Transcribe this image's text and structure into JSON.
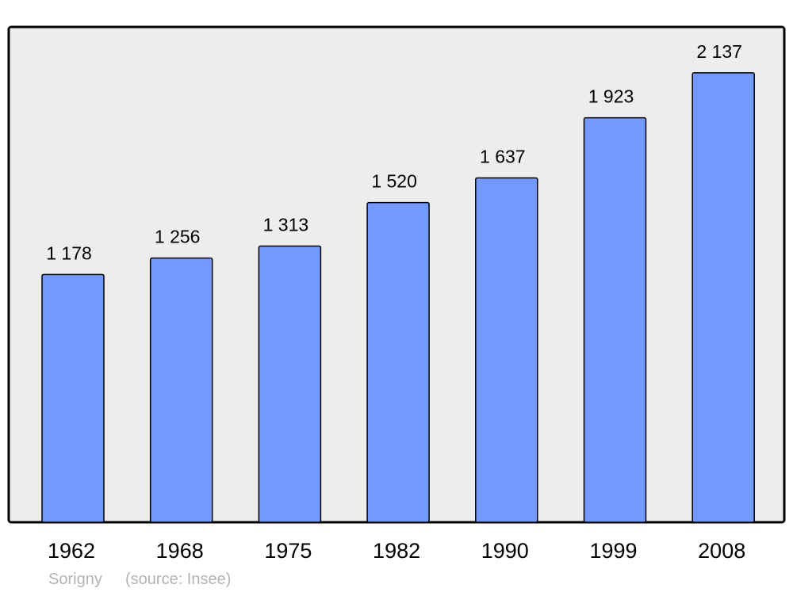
{
  "chart_data": {
    "type": "bar",
    "categories": [
      "1962",
      "1968",
      "1975",
      "1982",
      "1990",
      "1999",
      "2008"
    ],
    "values": [
      1178,
      1256,
      1313,
      1520,
      1637,
      1923,
      2137
    ],
    "value_labels": [
      "1 178",
      "1 256",
      "1 313",
      "1 520",
      "1 637",
      "1 923",
      "2 137"
    ],
    "title": "",
    "xlabel": "",
    "ylabel": "",
    "ylim": [
      0,
      2355
    ],
    "grid": false,
    "footer": {
      "place": "Sorigny",
      "source": "(source: Insee)"
    },
    "colors": {
      "bar": "#7399ff",
      "plot_background": "#ededed",
      "border": "#000000",
      "footer_text": "#b3b3b3"
    }
  }
}
